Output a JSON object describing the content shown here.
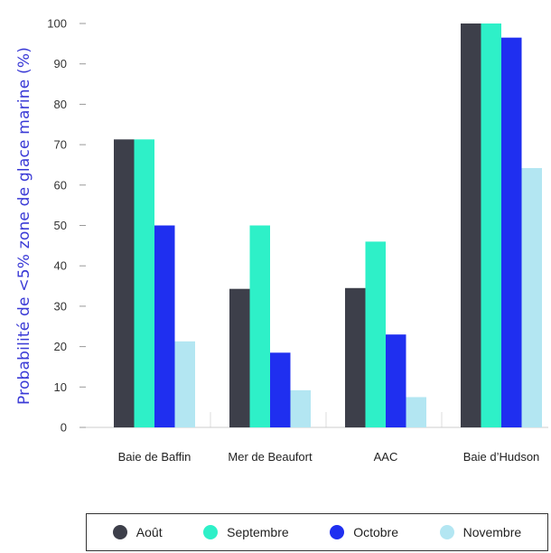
{
  "chart_data": {
    "type": "bar",
    "title": "",
    "xlabel": "",
    "ylabel": "Probabilité de <5% zone de glace marine (%)",
    "ylim": [
      0,
      100
    ],
    "yticks": [
      0,
      10,
      20,
      30,
      40,
      50,
      60,
      70,
      80,
      90,
      100
    ],
    "categories": [
      "Baie de Baffin",
      "Mer de Beaufort",
      "AAC",
      "Baie d’Hudson"
    ],
    "series": [
      {
        "name": "Août",
        "color": "#3d3f4a",
        "values": [
          71.3,
          34.3,
          34.5,
          100
        ]
      },
      {
        "name": "Septembre",
        "color": "#2ef0c8",
        "values": [
          71.3,
          50,
          46,
          100
        ]
      },
      {
        "name": "Octobre",
        "color": "#1f2ff0",
        "values": [
          50,
          18.5,
          23,
          96.5
        ]
      },
      {
        "name": "Novembre",
        "color": "#b3e6f2",
        "values": [
          21.3,
          9.2,
          7.5,
          64.2
        ]
      }
    ],
    "grid": false,
    "legend": "bottom"
  }
}
